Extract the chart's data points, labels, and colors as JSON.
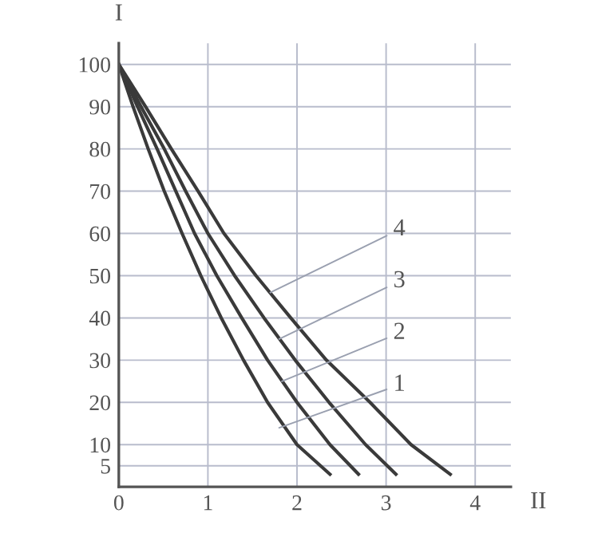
{
  "chart_data": {
    "type": "line",
    "xlabel": "II",
    "ylabel": "I",
    "xlim": [
      0,
      4.4
    ],
    "ylim": [
      0,
      105
    ],
    "xticks": [
      0,
      1,
      2,
      3,
      4
    ],
    "yticks": [
      5,
      10,
      20,
      30,
      40,
      50,
      60,
      70,
      80,
      90,
      100
    ],
    "grid": true,
    "marker": "none",
    "line_style": "solid",
    "series": [
      {
        "color": "#3a3a3a",
        "x": [
          0,
          0.16,
          0.33,
          0.51,
          0.71,
          0.92,
          1.15,
          1.4,
          1.67,
          2.0,
          2.37
        ],
        "values": [
          100,
          90,
          80,
          70,
          60,
          50,
          40,
          30,
          20,
          10,
          3
        ]
      },
      {
        "color": "#3a3a3a",
        "x": [
          0,
          0.21,
          0.43,
          0.64,
          0.85,
          1.1,
          1.38,
          1.67,
          2.0,
          2.37,
          2.69
        ],
        "values": [
          100,
          90,
          80,
          70,
          60,
          50,
          40,
          30,
          20,
          10,
          3
        ]
      },
      {
        "color": "#3a3a3a",
        "x": [
          0,
          0.25,
          0.51,
          0.75,
          1.0,
          1.3,
          1.63,
          1.98,
          2.36,
          2.77,
          3.11
        ],
        "values": [
          100,
          90,
          80,
          70,
          60,
          50,
          40,
          30,
          20,
          10,
          3
        ]
      },
      {
        "color": "#3a3a3a",
        "x": [
          0,
          0.3,
          0.59,
          0.89,
          1.18,
          1.54,
          1.93,
          2.33,
          2.82,
          3.28,
          3.72
        ],
        "values": [
          100,
          90,
          80,
          70,
          60,
          50,
          40,
          30,
          20,
          10,
          3
        ]
      }
    ],
    "annotations": [
      {
        "text": "4",
        "x": 1.7,
        "y": 46
      },
      {
        "text": "3",
        "x": 1.8,
        "y": 35
      },
      {
        "text": "2",
        "x": 1.83,
        "y": 25
      },
      {
        "text": "1",
        "x": 1.8,
        "y": 14
      }
    ]
  }
}
